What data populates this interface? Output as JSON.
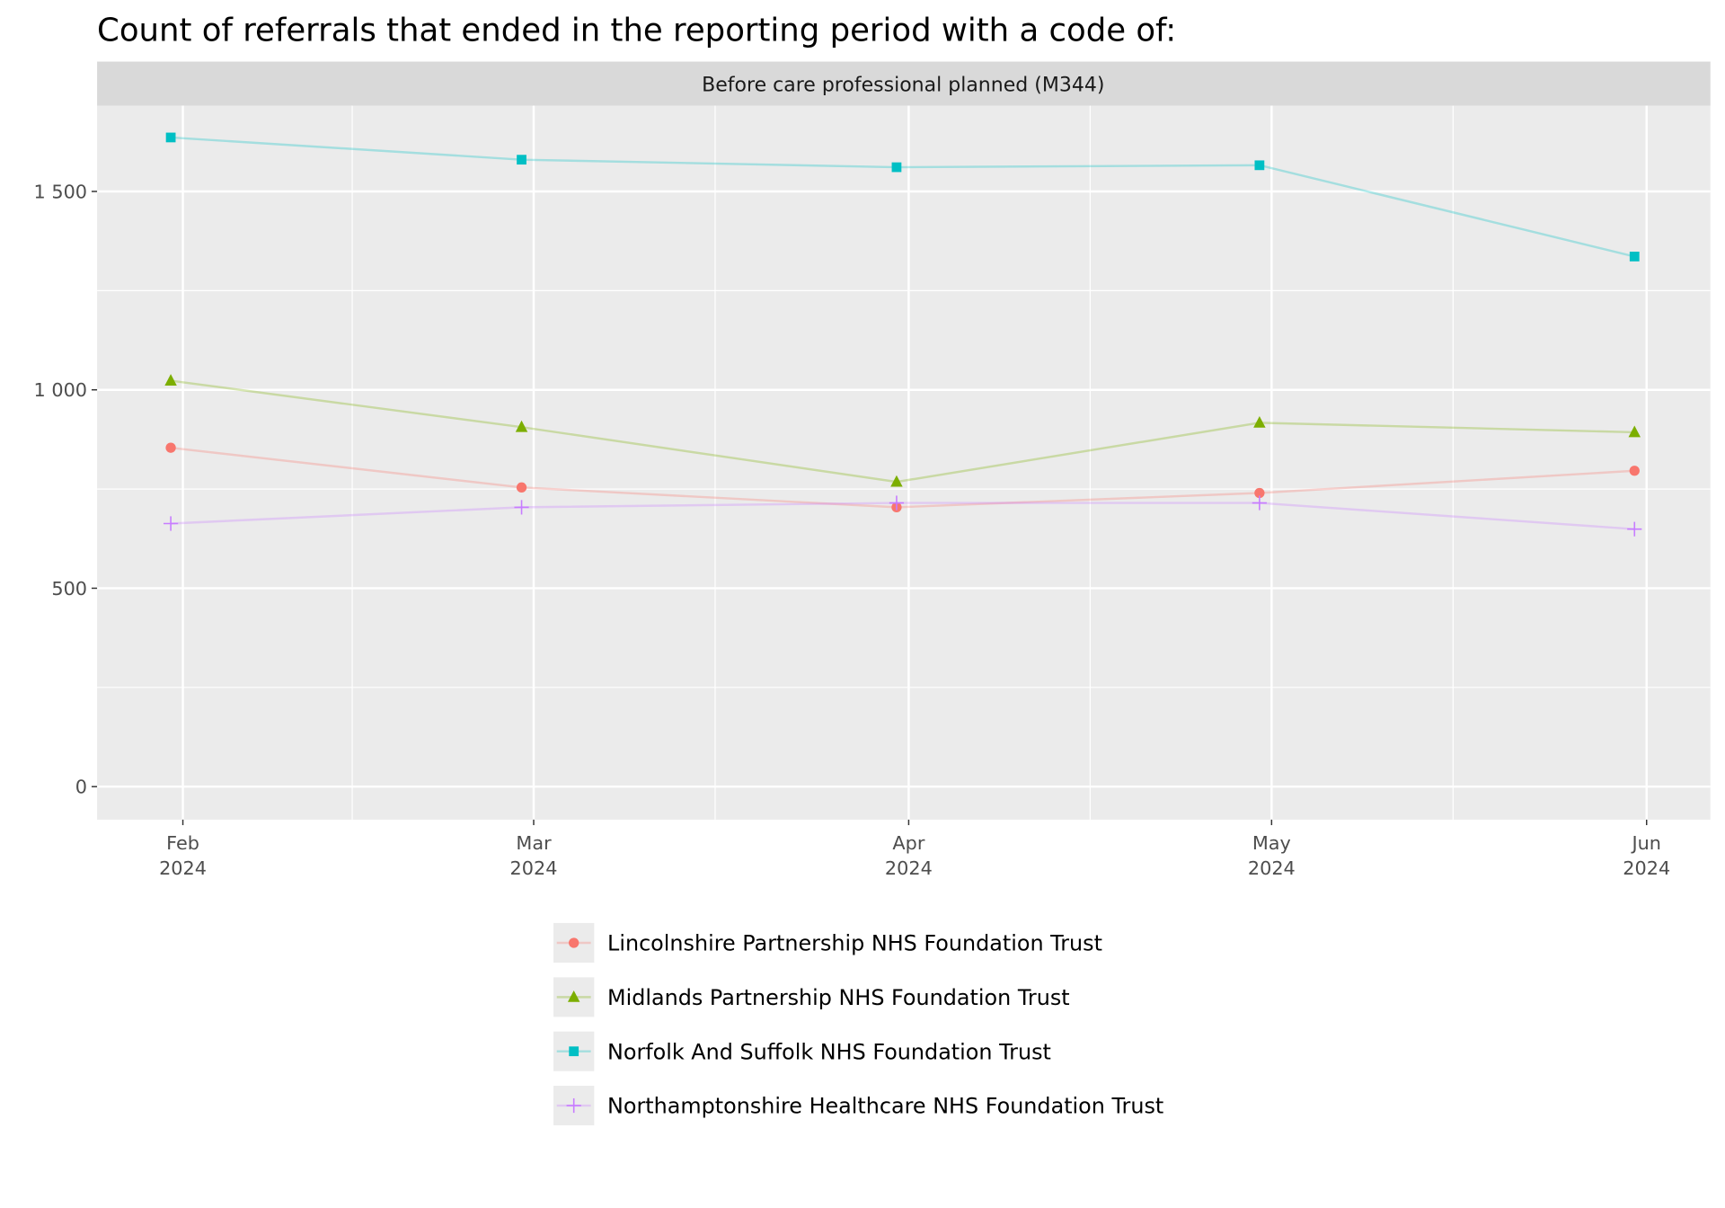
{
  "chart_data": {
    "type": "line",
    "title": "Count of referrals that ended in the reporting period with a code of:",
    "facet_label": "Before care professional planned (M344)",
    "xlabel": "",
    "ylabel": "",
    "x": [
      "2024-01-31",
      "2024-02-29",
      "2024-03-31",
      "2024-04-30",
      "2024-05-31"
    ],
    "x_ticks": [
      {
        "date": "2024-02-01",
        "label1": "Feb",
        "label2": "2024"
      },
      {
        "date": "2024-03-01",
        "label1": "Mar",
        "label2": "2024"
      },
      {
        "date": "2024-04-01",
        "label1": "Apr",
        "label2": "2024"
      },
      {
        "date": "2024-05-01",
        "label1": "May",
        "label2": "2024"
      },
      {
        "date": "2024-06-01",
        "label1": "Jun",
        "label2": "2024"
      }
    ],
    "ylim": [
      -80,
      1700
    ],
    "y_ticks": [
      {
        "value": 0,
        "label": "0"
      },
      {
        "value": 500,
        "label": "500"
      },
      {
        "value": 1000,
        "label": "1 000"
      },
      {
        "value": 1500,
        "label": "1 500"
      }
    ],
    "grid": true,
    "legend_position": "bottom",
    "series": [
      {
        "name": "Lincolnshire Partnership NHS Foundation Trust",
        "color": "#F8766D",
        "shape": "circle",
        "values": [
          854,
          754,
          704,
          740,
          796
        ]
      },
      {
        "name": "Midlands Partnership NHS Foundation Trust",
        "color": "#7CAE00",
        "shape": "triangle",
        "values": [
          1023,
          906,
          768,
          917,
          893
        ]
      },
      {
        "name": "Norfolk And Suffolk NHS Foundation Trust",
        "color": "#00BFC4",
        "shape": "square",
        "values": [
          1636,
          1580,
          1561,
          1566,
          1336
        ]
      },
      {
        "name": "Northamptonshire Healthcare NHS Foundation Trust",
        "color": "#C77CFF",
        "shape": "plus",
        "values": [
          663,
          704,
          715,
          715,
          649
        ]
      }
    ]
  }
}
